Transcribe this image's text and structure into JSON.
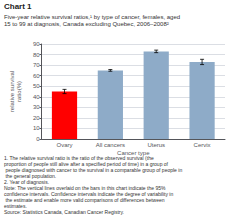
{
  "chart_data": {
    "type": "bar",
    "title": "Chart 1",
    "subtitle": "Five-year relative survival ratios,¹ by type of cancer, females, aged\n15 to 99 at diagnosis, Canada excluding Quebec, 2006–2008²",
    "xlabel": "Cancer type",
    "ylabel": "relative survival\nratio(%)",
    "categories": [
      "Ovary",
      "All cancers",
      "Uterus",
      "Cervix"
    ],
    "values": [
      45.0,
      65.0,
      83.0,
      73.0
    ],
    "errors": [
      2.0,
      0.8,
      1.2,
      2.5
    ],
    "colors": [
      "#ff0000",
      "#8eabc8",
      "#8eabc8",
      "#8eabc8"
    ],
    "ylim": [
      0,
      90
    ],
    "yticks": [
      0,
      10,
      20,
      30,
      40,
      50,
      60,
      70,
      80,
      90
    ],
    "grid": true,
    "annotations": [
      "1. The relative survival ratio is the ratio of the observed survival (the proportion of people still alive after a specified period of time) in a group of people diagnosed with cancer to the survival in a comparable group of people in the general population.",
      "2. Year of diagnosis.",
      "Note: The vertical lines overlaid on the bars in this chart indicate the 95% confidence intervals. Confidence intervals indicate the degree of variability in the estimate and enable more valid comparisons of differences between estimates.",
      "Source: Statistics Canada, Canadian Cancer Registry."
    ]
  }
}
